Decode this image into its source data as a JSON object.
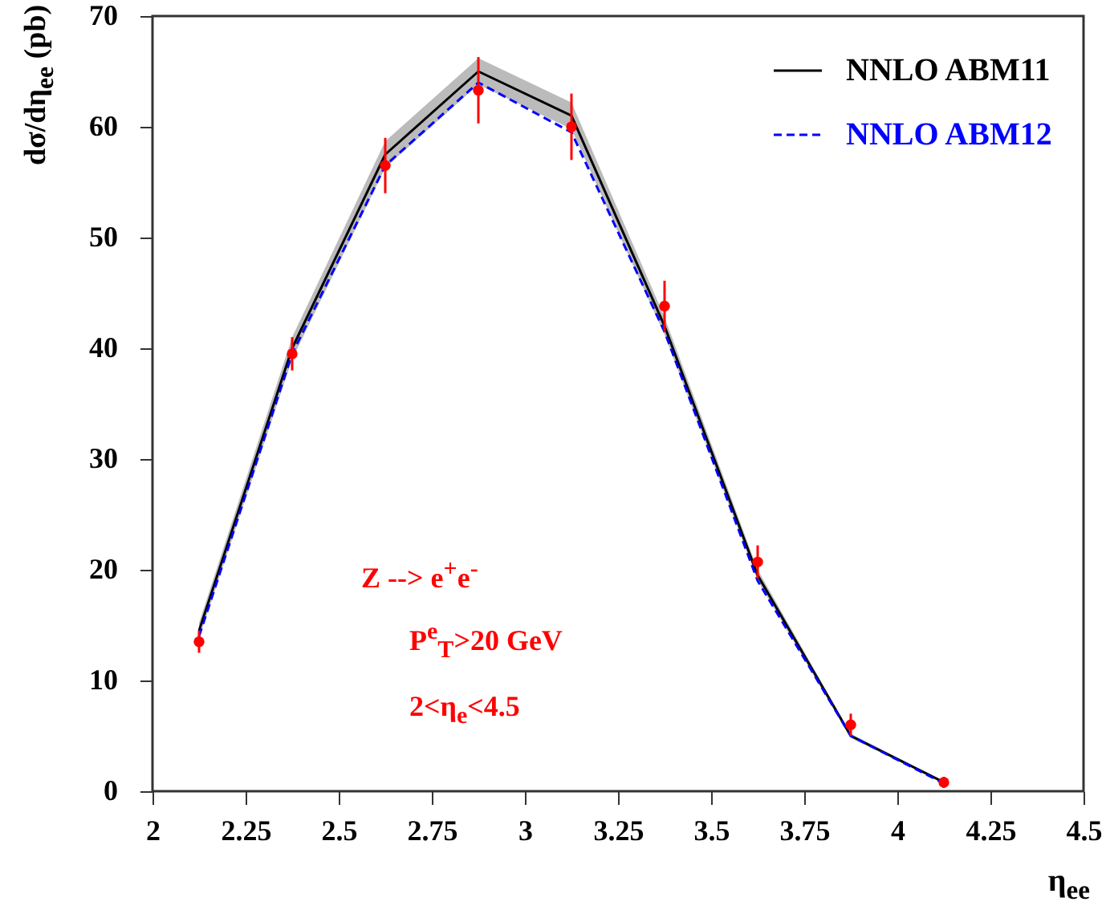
{
  "chart_data": {
    "type": "line",
    "xlabel": "η$_{ee}$",
    "ylabel": "dσ/dη$_{ee}$ (pb)",
    "x": [
      2.125,
      2.375,
      2.625,
      2.875,
      3.125,
      3.375,
      3.625,
      3.875,
      4.125
    ],
    "series": [
      {
        "name": "NNLO ABM11",
        "color": "#000000",
        "line_style": "solid",
        "values": [
          14.5,
          40,
          57.5,
          65,
          61,
          42,
          19.5,
          5,
          0.8
        ],
        "lower": [
          13.8,
          39,
          56.3,
          63.8,
          59.8,
          41.2,
          19,
          4.8,
          0.7
        ],
        "upper": [
          15.2,
          41,
          58.7,
          66.2,
          62.2,
          42.8,
          20,
          5.2,
          0.9
        ]
      },
      {
        "name": "NNLO ABM12",
        "color": "#0000ff",
        "line_style": "dashed",
        "values": [
          14,
          39.5,
          56.5,
          64,
          59.5,
          41.5,
          19,
          5,
          0.7
        ]
      },
      {
        "type": "scatter",
        "color": "#ff0000",
        "marker": "circle",
        "values": [
          13.5,
          39.5,
          56.5,
          63.3,
          60,
          43.8,
          20.7,
          6,
          0.8
        ],
        "errors": [
          1,
          1.5,
          2.5,
          3,
          3,
          2.3,
          1.5,
          1,
          0.5
        ]
      }
    ],
    "xlim": [
      2,
      4.5
    ],
    "xticks": [
      2,
      2.25,
      2.5,
      2.75,
      3,
      3.25,
      3.5,
      3.75,
      4,
      4.25,
      4.5
    ],
    "ylim": [
      0,
      70
    ],
    "yticks": [
      0,
      10,
      20,
      30,
      40,
      50,
      60,
      70
    ],
    "grid": false,
    "legend": "top right",
    "annotations": [
      "Z --> e$^{+}$e$^{-}$",
      "P$^{e}$$_{T}$>20 GeV",
      "2<η$_{e}$<4.5"
    ]
  }
}
